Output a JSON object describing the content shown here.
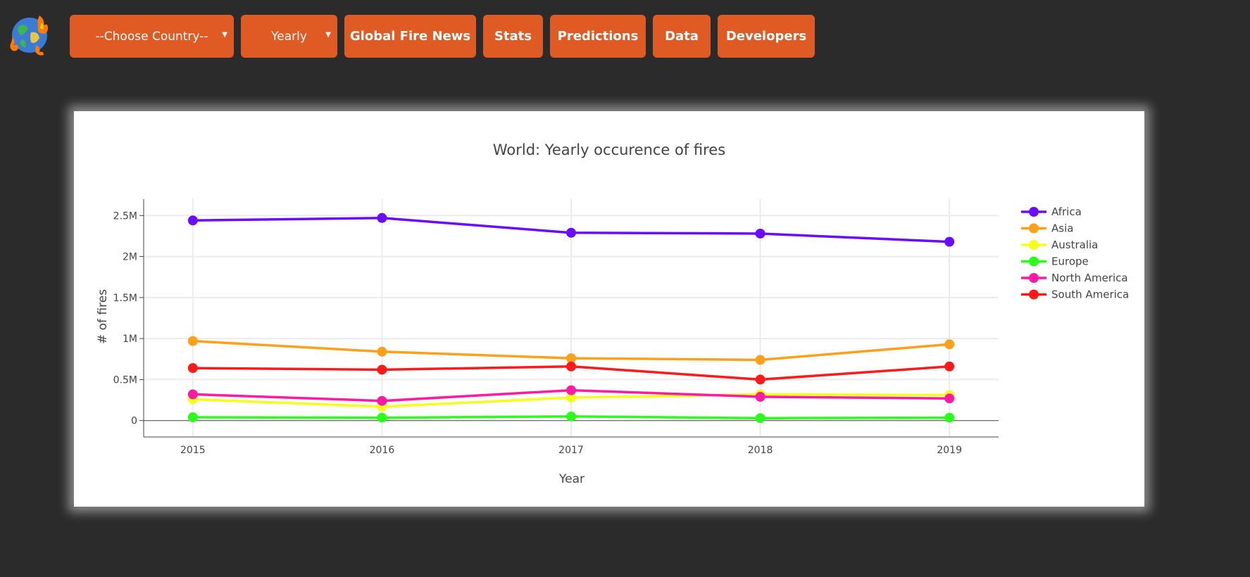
{
  "nav": {
    "country_select": "--Choose Country--",
    "period_select": "Yearly",
    "news": "Global Fire News",
    "stats": "Stats",
    "predictions": "Predictions",
    "data": "Data",
    "developers": "Developers"
  },
  "logo_icon": "globe-fire-icon",
  "chart_data": {
    "type": "line",
    "title": "World: Yearly occurence of fires",
    "xlabel": "Year",
    "ylabel": "# of fires",
    "x": [
      2015,
      2016,
      2017,
      2018,
      2019
    ],
    "xticks": [
      "2015",
      "2016",
      "2017",
      "2018",
      "2019"
    ],
    "yticks": [
      {
        "value": 0,
        "label": "0"
      },
      {
        "value": 500000,
        "label": "0.5M"
      },
      {
        "value": 1000000,
        "label": "1M"
      },
      {
        "value": 1500000,
        "label": "1.5M"
      },
      {
        "value": 2000000,
        "label": "2M"
      },
      {
        "value": 2500000,
        "label": "2.5M"
      }
    ],
    "xlim": [
      2014.74,
      2019.26
    ],
    "ylim": [
      -200000,
      2700000
    ],
    "grid": true,
    "legend": "right",
    "series": [
      {
        "name": "Africa",
        "color": "#6a0dff",
        "values": [
          2440000,
          2470000,
          2290000,
          2280000,
          2180000
        ]
      },
      {
        "name": "Asia",
        "color": "#ffa01a",
        "values": [
          970000,
          840000,
          760000,
          740000,
          930000
        ]
      },
      {
        "name": "Australia",
        "color": "#f4ff1a",
        "values": [
          260000,
          170000,
          280000,
          320000,
          310000
        ]
      },
      {
        "name": "Europe",
        "color": "#2aff1a",
        "values": [
          40000,
          35000,
          50000,
          30000,
          35000
        ]
      },
      {
        "name": "North America",
        "color": "#ff1aa3",
        "values": [
          320000,
          240000,
          370000,
          290000,
          270000
        ]
      },
      {
        "name": "South America",
        "color": "#ff1a1a",
        "values": [
          640000,
          620000,
          660000,
          500000,
          660000
        ]
      }
    ]
  }
}
